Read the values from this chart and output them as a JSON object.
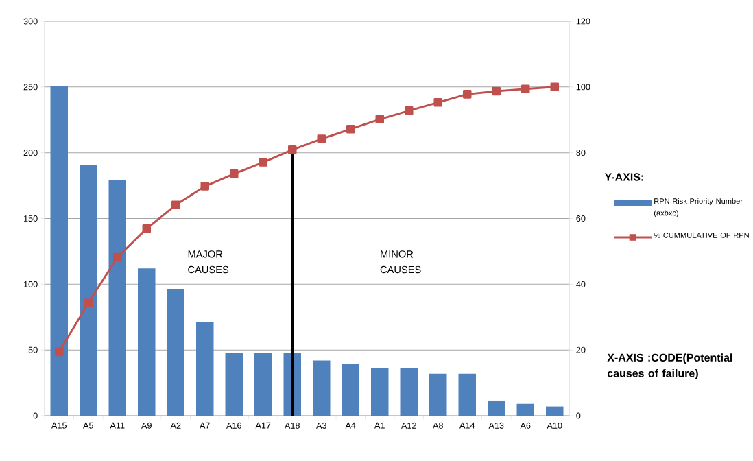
{
  "chart_data": {
    "type": "bar",
    "categories": [
      "A15",
      "A5",
      "A11",
      "A9",
      "A2",
      "A7",
      "A16",
      "A17",
      "A18",
      "A3",
      "A4",
      "A1",
      "A12",
      "A8",
      "A14",
      "A13",
      "A6",
      "A10"
    ],
    "series": [
      {
        "name": "RPN Risk Priority Number (axbxc)",
        "color": "#4f81bd",
        "values": [
          251,
          191,
          179,
          112,
          96,
          71.5,
          48,
          48,
          48,
          42,
          39.5,
          36,
          36,
          32,
          32,
          11.5,
          9,
          7
        ]
      },
      {
        "name": "% CUMMULATIVE  OF RPN",
        "type": "line",
        "axis": "y2",
        "color": "#c0504d",
        "marker": "square",
        "values": [
          19.4,
          34.3,
          48.2,
          56.9,
          64.1,
          69.8,
          73.6,
          77.1,
          80.9,
          84.2,
          87.2,
          90.2,
          92.8,
          95.3,
          97.8,
          98.7,
          99.4,
          100
        ]
      }
    ],
    "ylim": [
      0,
      300
    ],
    "yticks": [
      0,
      50,
      100,
      150,
      200,
      250,
      300
    ],
    "y2lim": [
      0,
      120
    ],
    "y2ticks": [
      0,
      20,
      40,
      60,
      80,
      100,
      120
    ],
    "grid": "y",
    "legend": "right",
    "legend_title": "Y-AXIS:",
    "xlabel": "X-AXIS :CODE(Potential causes of failure)",
    "annotations": [
      "MAJOR CAUSES",
      "MINOR CAUSES"
    ],
    "ref_lines": [
      {
        "axis": "x",
        "value": "A18",
        "color": "#000000"
      }
    ]
  }
}
